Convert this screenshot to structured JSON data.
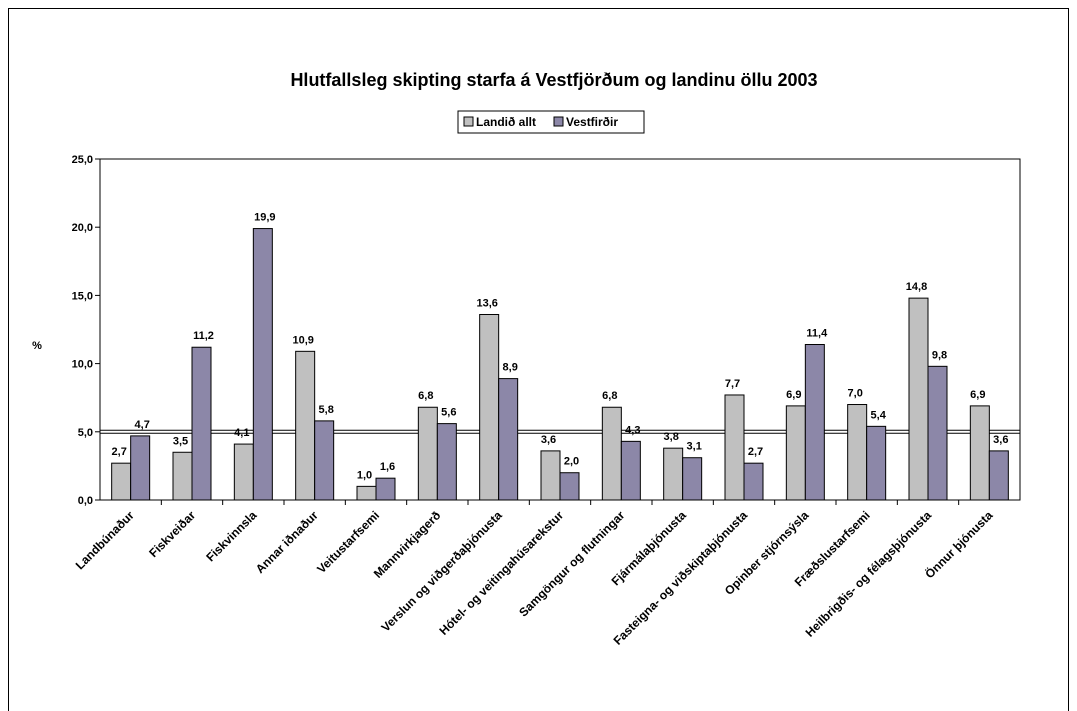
{
  "chart_data": {
    "type": "bar",
    "title": "Hlutfallsleg skipting starfa á Vestfjörðum og landinu öllu 2003",
    "xlabel": "",
    "ylabel": "%",
    "ylim": [
      0,
      25
    ],
    "yticks": [
      "0,0",
      "5,0",
      "10,0",
      "15,0",
      "20,0",
      "25,0"
    ],
    "reference_line": 5.0,
    "legend_position": "top",
    "categories": [
      "Landbúnaður",
      "Fiskveiðar",
      "Fiskvinnsla",
      "Annar iðnaður",
      "Veitustarfsemi",
      "Mannvirkjagerð",
      "Verslun og viðgerðaþjónusta",
      "Hótel- og veitingahúsarekstur",
      "Samgöngur og flutningar",
      "Fjármálaþjónusta",
      "Fasteigna- og viðskiptaþjónusta",
      "Opinber stjórnsýsla",
      "Fræðslustarfsemi",
      "Heilbrigðis- og félagsþjónusta",
      "Önnur þjónusta"
    ],
    "series": [
      {
        "name": "Landið allt",
        "color": "#c0c0c0",
        "values": [
          2.7,
          3.5,
          4.1,
          10.9,
          1.0,
          6.8,
          13.6,
          3.6,
          6.8,
          3.8,
          7.7,
          6.9,
          7.0,
          14.8,
          6.9
        ],
        "labels": [
          "2,7",
          "3,5",
          "4,1",
          "10,9",
          "1,0",
          "6,8",
          "13,6",
          "3,6",
          "6,8",
          "3,8",
          "7,7",
          "6,9",
          "7,0",
          "14,8",
          "6,9"
        ]
      },
      {
        "name": "Vestfirðir",
        "color": "#8c87a8",
        "values": [
          4.7,
          11.2,
          19.9,
          5.8,
          1.6,
          5.6,
          8.9,
          2.0,
          4.3,
          3.1,
          2.7,
          11.4,
          5.4,
          9.8,
          3.6
        ],
        "labels": [
          "4,7",
          "11,2",
          "19,9",
          "5,8",
          "1,6",
          "5,6",
          "8,9",
          "2,0",
          "4,3",
          "3,1",
          "2,7",
          "11,4",
          "5,4",
          "9,8",
          "3,6"
        ]
      }
    ]
  }
}
